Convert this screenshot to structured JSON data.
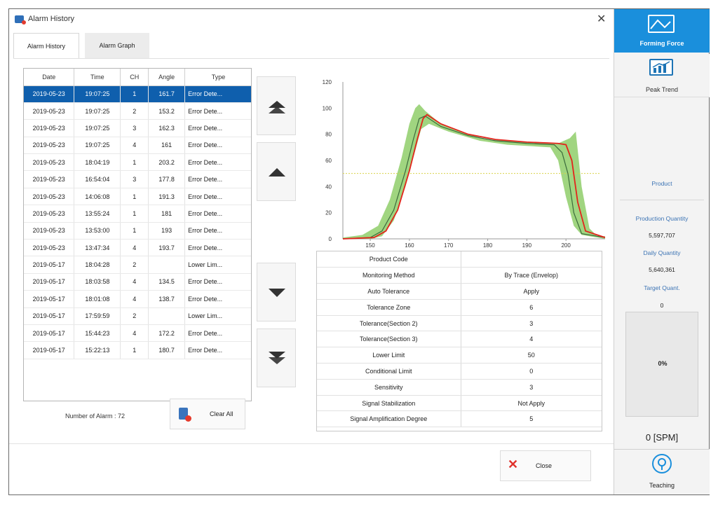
{
  "window": {
    "title": "Alarm History",
    "close_glyph": "✕"
  },
  "tabs": [
    {
      "label": "Alarm History",
      "active": true
    },
    {
      "label": "Alarm Graph",
      "active": false
    }
  ],
  "table": {
    "columns": [
      "Date",
      "Time",
      "CH",
      "Angle",
      "Type"
    ],
    "rows": [
      [
        "2019-05-23",
        "19:07:25",
        "1",
        "161.7",
        "Error Dete..."
      ],
      [
        "2019-05-23",
        "19:07:25",
        "2",
        "153.2",
        "Error Dete..."
      ],
      [
        "2019-05-23",
        "19:07:25",
        "3",
        "162.3",
        "Error Dete..."
      ],
      [
        "2019-05-23",
        "19:07:25",
        "4",
        "161",
        "Error Dete..."
      ],
      [
        "2019-05-23",
        "18:04:19",
        "1",
        "203.2",
        "Error Dete..."
      ],
      [
        "2019-05-23",
        "16:54:04",
        "3",
        "177.8",
        "Error Dete..."
      ],
      [
        "2019-05-23",
        "14:06:08",
        "1",
        "191.3",
        "Error Dete..."
      ],
      [
        "2019-05-23",
        "13:55:24",
        "1",
        "181",
        "Error Dete..."
      ],
      [
        "2019-05-23",
        "13:53:00",
        "1",
        "193",
        "Error Dete..."
      ],
      [
        "2019-05-23",
        "13:47:34",
        "4",
        "193.7",
        "Error Dete..."
      ],
      [
        "2019-05-17",
        "18:04:28",
        "2",
        "",
        "Lower Lim..."
      ],
      [
        "2019-05-17",
        "18:03:58",
        "4",
        "134.5",
        "Error Dete..."
      ],
      [
        "2019-05-17",
        "18:01:08",
        "4",
        "138.7",
        "Error Dete..."
      ],
      [
        "2019-05-17",
        "17:59:59",
        "2",
        "",
        "Lower Lim..."
      ],
      [
        "2019-05-17",
        "15:44:23",
        "4",
        "172.2",
        "Error Dete..."
      ],
      [
        "2019-05-17",
        "15:22:13",
        "1",
        "180.7",
        "Error Dete..."
      ]
    ],
    "selected_row": 0
  },
  "footer": {
    "alarm_count_label": "Number of Alarm : 72",
    "clear_all": "Clear All",
    "close": "Close"
  },
  "icons": {
    "app": "app-logo-icon",
    "clear": "trash-alarm-icon",
    "close": "close-x-icon",
    "scroll": [
      "double-chevron-up-icon",
      "chevron-up-icon",
      "chevron-down-icon",
      "double-chevron-down-icon"
    ]
  },
  "chart_data": {
    "type": "line",
    "xlim": [
      143,
      210
    ],
    "ylim": [
      0,
      120
    ],
    "x_ticks": [
      150,
      160,
      170,
      180,
      190,
      200
    ],
    "y_ticks": [
      0,
      20,
      40,
      60,
      80,
      100,
      120
    ],
    "threshold_y": 50,
    "series": [
      {
        "role": "envelope",
        "color": "#8fce6a",
        "points_upper": [
          [
            143,
            1
          ],
          [
            148,
            3
          ],
          [
            152,
            10
          ],
          [
            155,
            30
          ],
          [
            158,
            62
          ],
          [
            160,
            88
          ],
          [
            161.5,
            100
          ],
          [
            162.5,
            103
          ],
          [
            164,
            98
          ],
          [
            168,
            88
          ],
          [
            175,
            80
          ],
          [
            180,
            76
          ],
          [
            190,
            74
          ],
          [
            198,
            73
          ],
          [
            201,
            77
          ],
          [
            202.5,
            82
          ],
          [
            204,
            40
          ],
          [
            206,
            8
          ],
          [
            208,
            2
          ],
          [
            210,
            2
          ]
        ],
        "points_lower": [
          [
            143,
            0
          ],
          [
            150,
            0
          ],
          [
            153,
            2
          ],
          [
            156,
            14
          ],
          [
            159,
            40
          ],
          [
            161,
            62
          ],
          [
            163,
            84
          ],
          [
            165,
            88
          ],
          [
            170,
            82
          ],
          [
            178,
            75
          ],
          [
            185,
            72
          ],
          [
            196,
            70
          ],
          [
            198,
            60
          ],
          [
            200,
            32
          ],
          [
            202,
            10
          ],
          [
            204,
            3
          ],
          [
            210,
            0
          ]
        ]
      },
      {
        "role": "mean",
        "color": "#3b6b3b",
        "points": [
          [
            143,
            0
          ],
          [
            150,
            1
          ],
          [
            153,
            6
          ],
          [
            156,
            22
          ],
          [
            159,
            52
          ],
          [
            161,
            76
          ],
          [
            162.5,
            92
          ],
          [
            164,
            94
          ],
          [
            168,
            86
          ],
          [
            175,
            79
          ],
          [
            182,
            75
          ],
          [
            190,
            73
          ],
          [
            197,
            72
          ],
          [
            199,
            66
          ],
          [
            200.5,
            50
          ],
          [
            202,
            20
          ],
          [
            204,
            4
          ],
          [
            210,
            1
          ]
        ]
      },
      {
        "role": "current",
        "color": "#e3241c",
        "points": [
          [
            143,
            0
          ],
          [
            151,
            1
          ],
          [
            154,
            6
          ],
          [
            157,
            22
          ],
          [
            160,
            52
          ],
          [
            162,
            76
          ],
          [
            163.5,
            92
          ],
          [
            164.5,
            95
          ],
          [
            168,
            88
          ],
          [
            175,
            80
          ],
          [
            182,
            76
          ],
          [
            190,
            74
          ],
          [
            198,
            73
          ],
          [
            200,
            72
          ],
          [
            201.5,
            60
          ],
          [
            203,
            28
          ],
          [
            205,
            6
          ],
          [
            210,
            1
          ]
        ]
      }
    ]
  },
  "params": [
    [
      "Product Code",
      ""
    ],
    [
      "Monitoring Method",
      "By Trace (Envelop)"
    ],
    [
      "Auto Tolerance",
      "Apply"
    ],
    [
      "Tolerance Zone",
      "6"
    ],
    [
      "Tolerance(Section 2)",
      "3"
    ],
    [
      "Tolerance(Section 3)",
      "4"
    ],
    [
      "Lower Limit",
      "50"
    ],
    [
      "Conditional Limit",
      "0"
    ],
    [
      "Sensitivity",
      "3"
    ],
    [
      "Signal Stabilization",
      "Not Apply"
    ],
    [
      "Signal Amplification Degree",
      "5"
    ]
  ],
  "side": {
    "forming_force": "Forming Force",
    "peak_trend": "Peak Trend",
    "product_label": "Product",
    "production_qty_label": "Production Quantity",
    "production_qty": "5,597,707",
    "daily_qty_label": "Daily Quantity",
    "daily_qty": "5,640,361",
    "target_label": "Target Quant.",
    "target": "0",
    "percent": "0%",
    "spm": "0 [SPM]",
    "teaching": "Teaching",
    "accent": "#1a8fdc"
  }
}
